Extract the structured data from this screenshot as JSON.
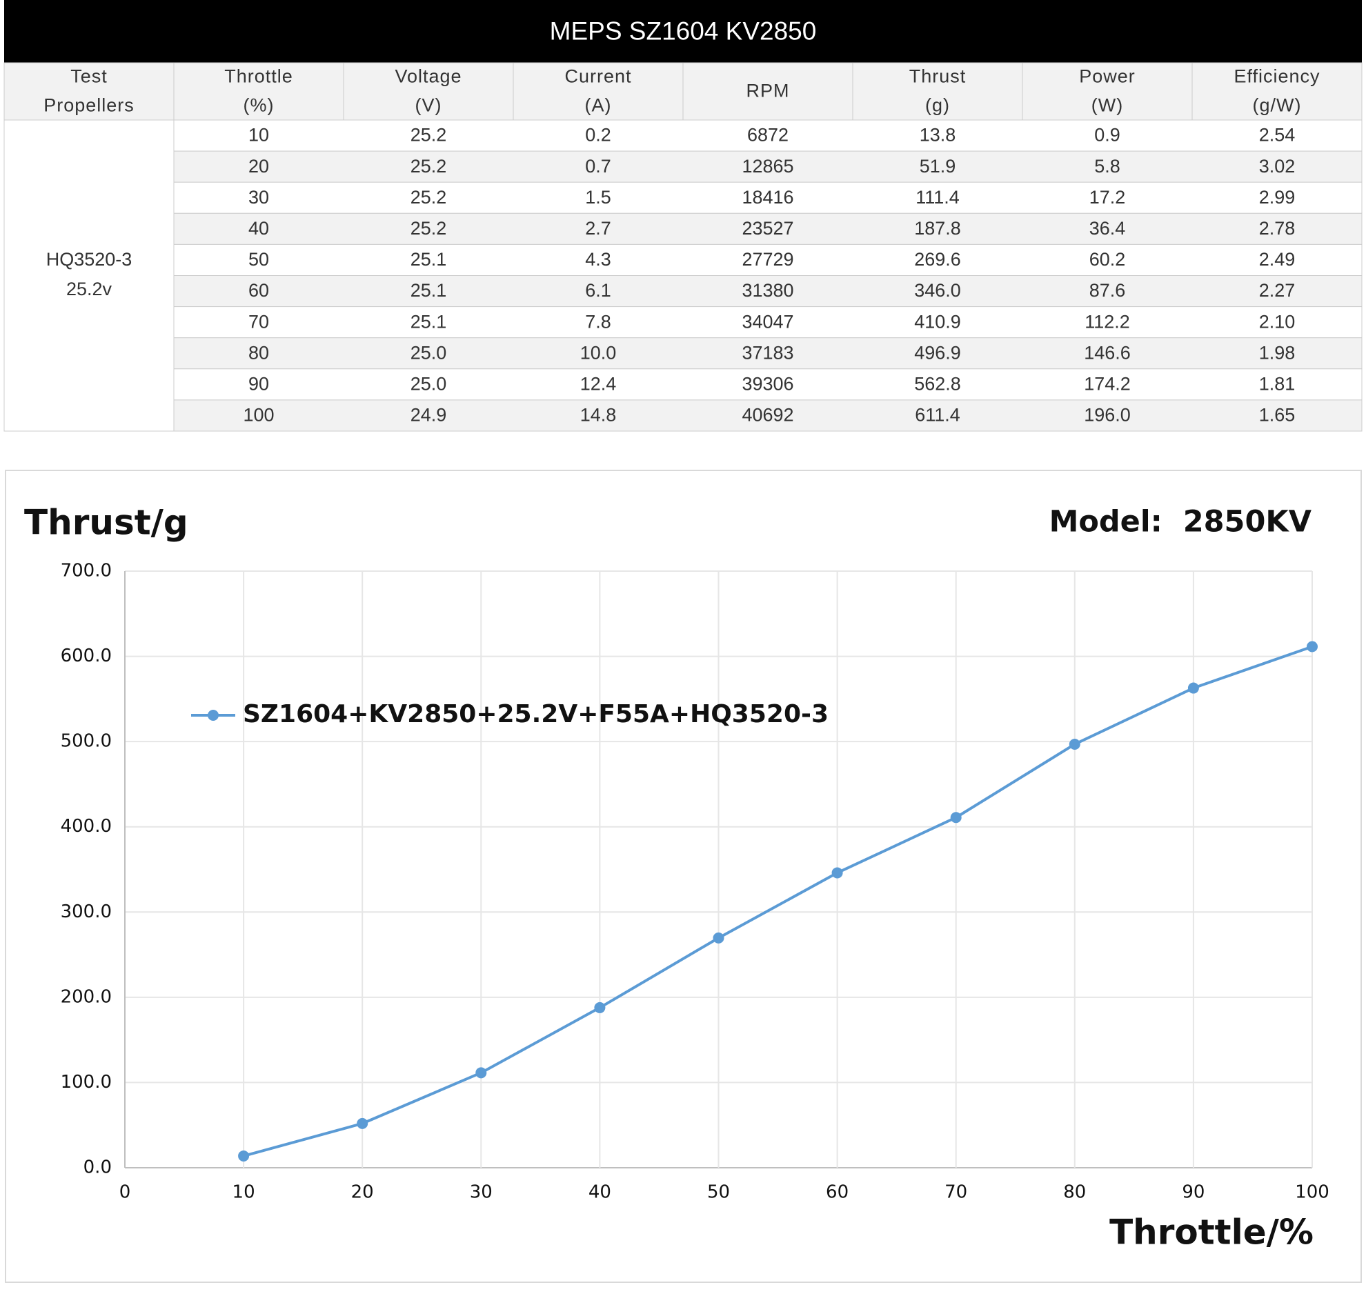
{
  "table": {
    "title": "MEPS SZ1604 KV2850",
    "headers": [
      [
        "Test",
        "Propellers"
      ],
      [
        "Throttle",
        "(%)"
      ],
      [
        "Voltage",
        "(V)"
      ],
      [
        "Current",
        "(A)"
      ],
      [
        "RPM"
      ],
      [
        "Thrust",
        "(g)"
      ],
      [
        "Power",
        "(W)"
      ],
      [
        "Efficiency",
        "(g/W)"
      ]
    ],
    "propeller": [
      "HQ3520-3",
      "25.2v"
    ],
    "rows": [
      [
        "10",
        "25.2",
        "0.2",
        "6872",
        "13.8",
        "0.9",
        "2.54"
      ],
      [
        "20",
        "25.2",
        "0.7",
        "12865",
        "51.9",
        "5.8",
        "3.02"
      ],
      [
        "30",
        "25.2",
        "1.5",
        "18416",
        "111.4",
        "17.2",
        "2.99"
      ],
      [
        "40",
        "25.2",
        "2.7",
        "23527",
        "187.8",
        "36.4",
        "2.78"
      ],
      [
        "50",
        "25.1",
        "4.3",
        "27729",
        "269.6",
        "60.2",
        "2.49"
      ],
      [
        "60",
        "25.1",
        "6.1",
        "31380",
        "346.0",
        "87.6",
        "2.27"
      ],
      [
        "70",
        "25.1",
        "7.8",
        "34047",
        "410.9",
        "112.2",
        "2.10"
      ],
      [
        "80",
        "25.0",
        "10.0",
        "37183",
        "496.9",
        "146.6",
        "1.98"
      ],
      [
        "90",
        "25.0",
        "12.4",
        "39306",
        "562.8",
        "174.2",
        "1.81"
      ],
      [
        "100",
        "24.9",
        "14.8",
        "40692",
        "611.4",
        "196.0",
        "1.65"
      ]
    ]
  },
  "chart_data": {
    "type": "line",
    "y_label": "Thrust/g",
    "annotation": "Model:  2850KV",
    "x_label": "Throttle/%",
    "x": [
      10,
      20,
      30,
      40,
      50,
      60,
      70,
      80,
      90,
      100
    ],
    "series": [
      {
        "name": "SZ1604+KV2850+25.2V+F55A+HQ3520-3",
        "color": "#5b9bd5",
        "values": [
          13.8,
          51.9,
          111.4,
          187.8,
          269.6,
          346.0,
          410.9,
          496.9,
          562.8,
          611.4
        ]
      }
    ],
    "xlim": [
      0,
      100
    ],
    "xticks": [
      0,
      10,
      20,
      30,
      40,
      50,
      60,
      70,
      80,
      90,
      100
    ],
    "ylim": [
      0,
      700
    ],
    "yticks": [
      {
        "value": 0,
        "label": "0.0"
      },
      {
        "value": 100,
        "label": "100.0"
      },
      {
        "value": 200,
        "label": "200.0"
      },
      {
        "value": 300,
        "label": "300.0"
      },
      {
        "value": 400,
        "label": "400.0"
      },
      {
        "value": 500,
        "label": "500.0"
      },
      {
        "value": 600,
        "label": "600.0"
      },
      {
        "value": 700,
        "label": "700.0"
      }
    ],
    "grid": true,
    "legend": "top-left"
  }
}
